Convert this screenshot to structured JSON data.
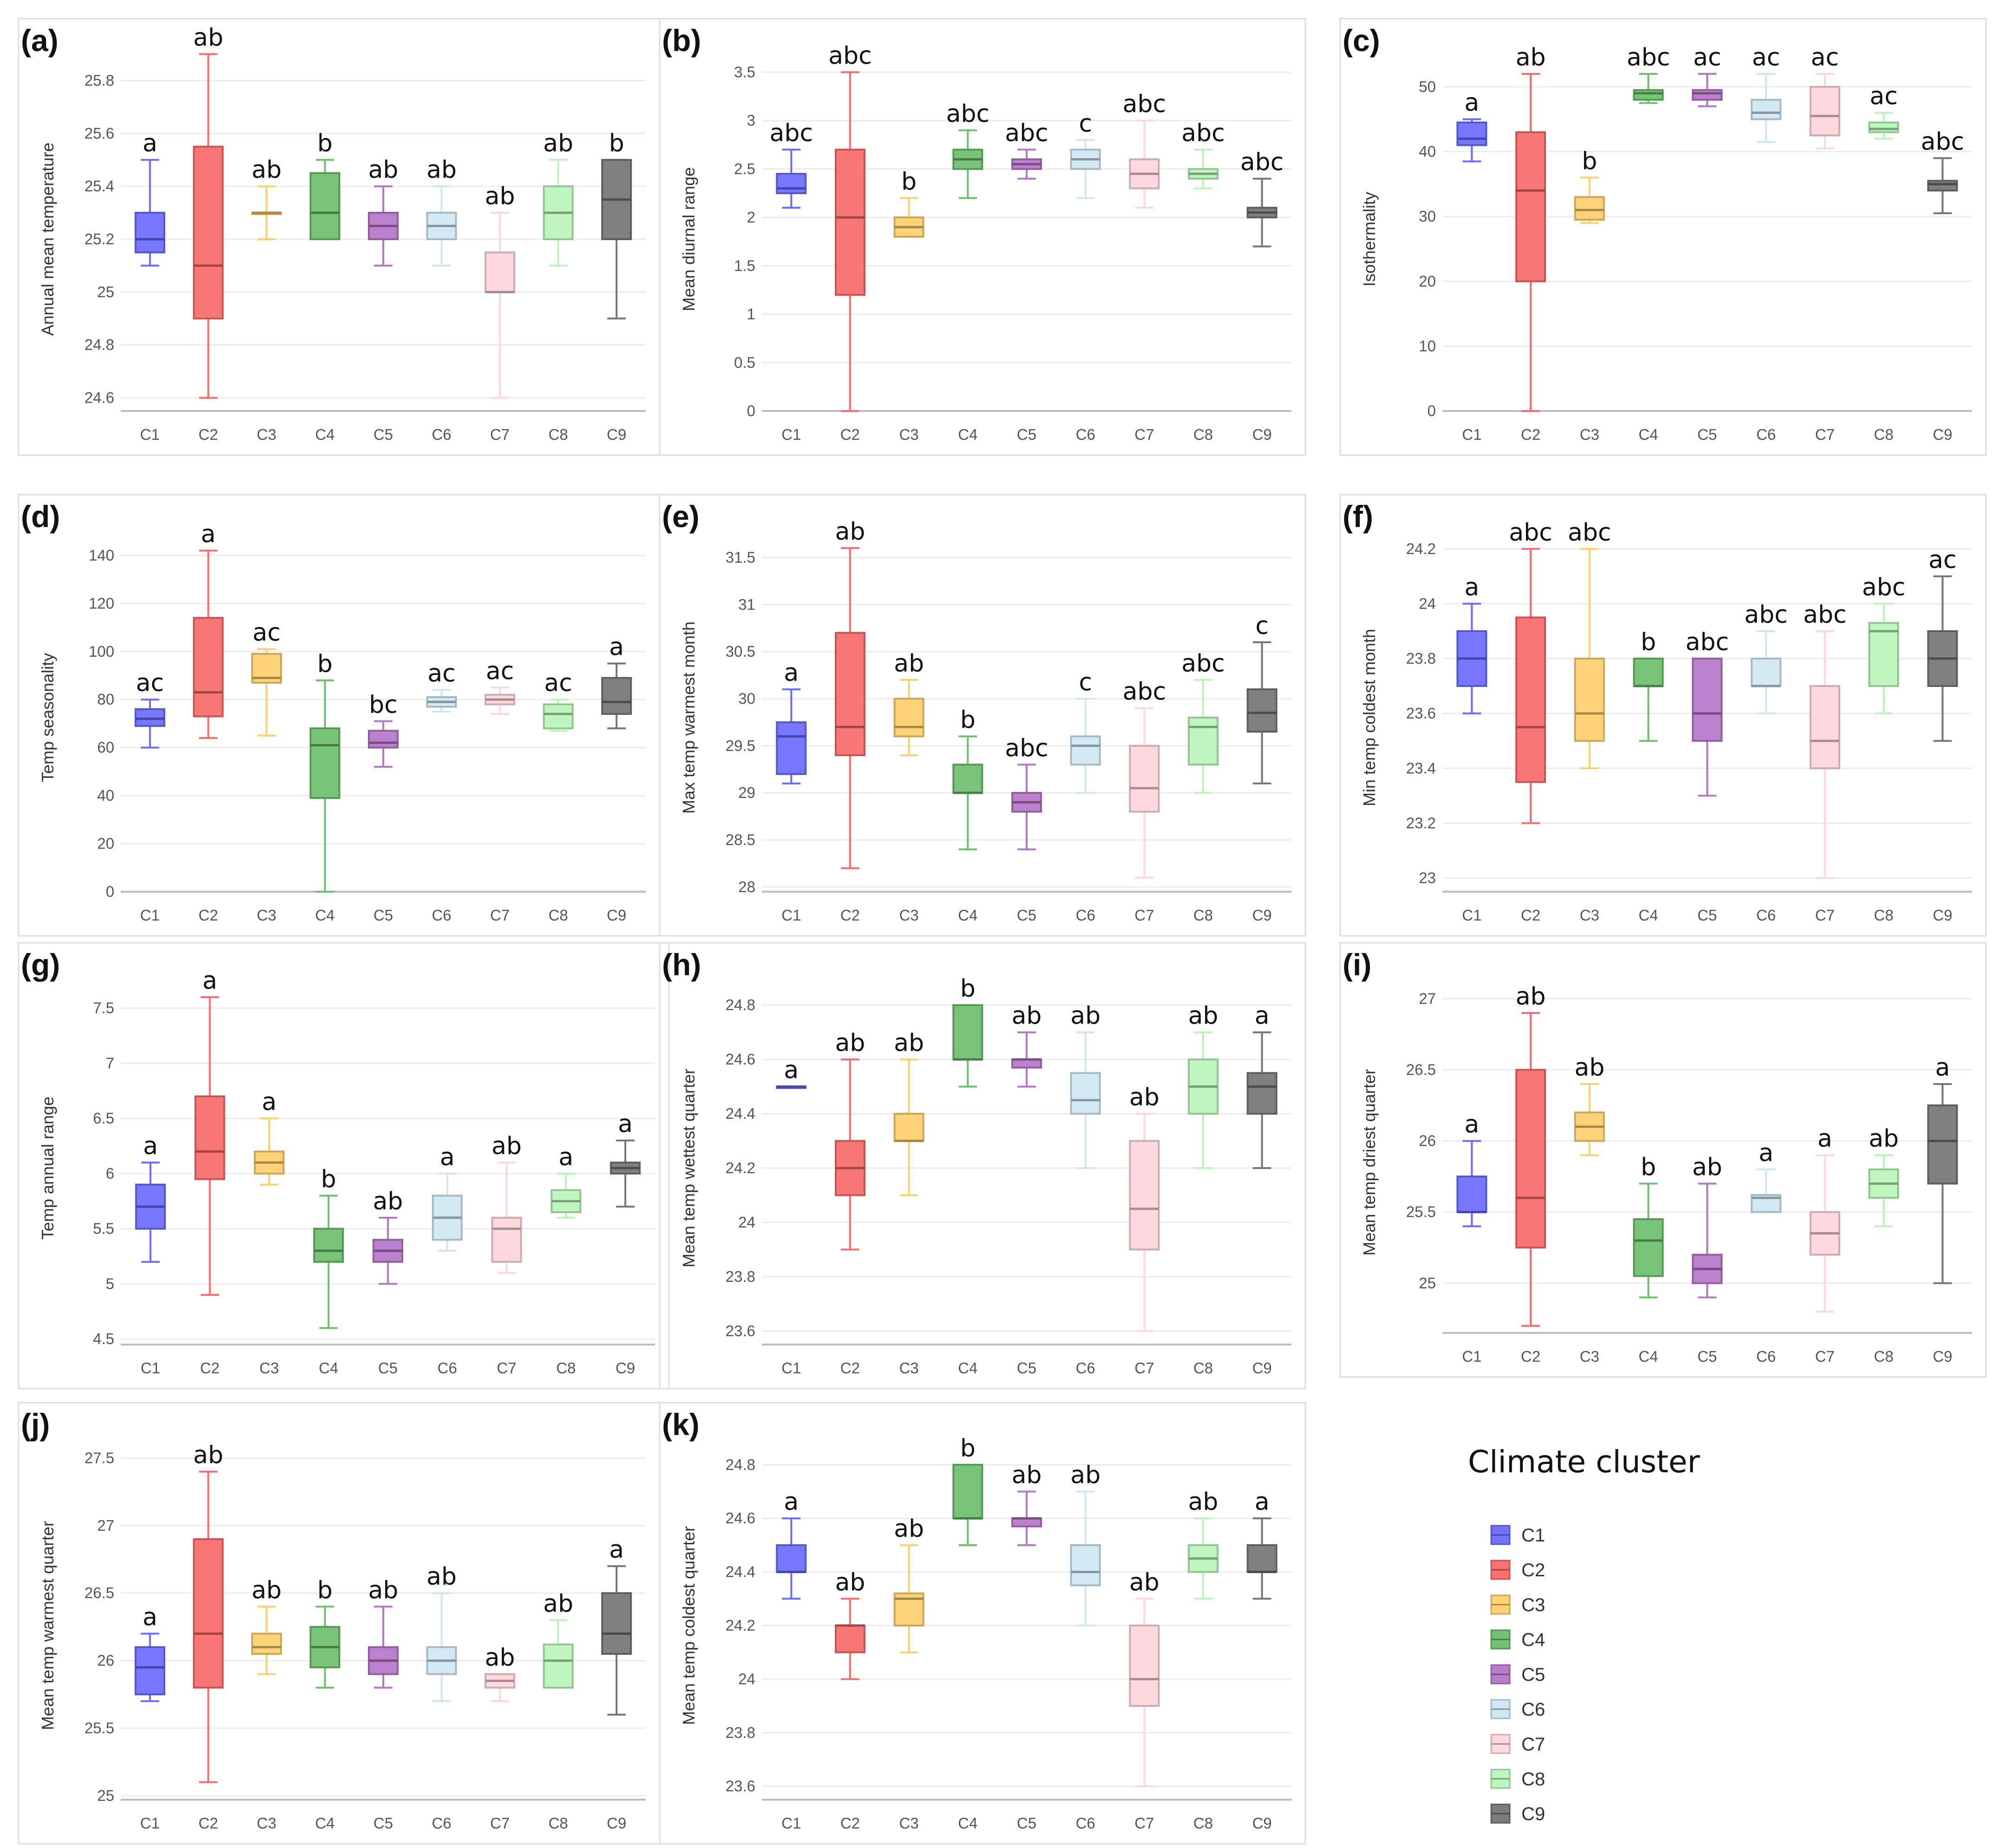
{
  "legend": {
    "title": "Climate cluster",
    "items": [
      {
        "label": "C1",
        "color": "#6b6bff"
      },
      {
        "label": "C2",
        "color": "#f96a6a"
      },
      {
        "label": "C3",
        "color": "#ffcf6e"
      },
      {
        "label": "C4",
        "color": "#6cbf6c"
      },
      {
        "label": "C5",
        "color": "#b676c8"
      },
      {
        "label": "C6",
        "color": "#cfe7f3"
      },
      {
        "label": "C7",
        "color": "#ffd6dd"
      },
      {
        "label": "C8",
        "color": "#b9f5b9"
      },
      {
        "label": "C9",
        "color": "#757575"
      }
    ]
  },
  "chart_data": [
    {
      "tag": "(a)",
      "type": "box",
      "ylabel": "Annual mean temperature",
      "categories": [
        "C1",
        "C2",
        "C3",
        "C4",
        "C5",
        "C6",
        "C7",
        "C8",
        "C9"
      ],
      "ylim": [
        24.55,
        25.85
      ],
      "yticks": [
        24.6,
        24.8,
        25,
        25.2,
        25.4,
        25.6,
        25.8
      ],
      "boxes": [
        [
          25.1,
          25.15,
          25.2,
          25.3,
          25.5
        ],
        [
          24.6,
          24.9,
          25.1,
          25.55,
          25.9
        ],
        [
          25.2,
          25.3,
          25.3,
          25.3,
          25.4
        ],
        [
          25.2,
          25.2,
          25.3,
          25.45,
          25.5
        ],
        [
          25.1,
          25.2,
          25.25,
          25.3,
          25.4
        ],
        [
          25.1,
          25.2,
          25.25,
          25.3,
          25.4
        ],
        [
          24.6,
          25.0,
          25.0,
          25.15,
          25.3
        ],
        [
          25.1,
          25.2,
          25.3,
          25.4,
          25.5
        ],
        [
          24.9,
          25.2,
          25.35,
          25.5,
          25.5
        ]
      ],
      "letters": [
        "a",
        "ab",
        "ab",
        "b",
        "ab",
        "ab",
        "ab",
        "ab",
        "b"
      ]
    },
    {
      "tag": "(b)",
      "type": "box",
      "ylabel": "Mean diurnal range",
      "categories": [
        "C1",
        "C2",
        "C3",
        "C4",
        "C5",
        "C6",
        "C7",
        "C8",
        "C9"
      ],
      "ylim": [
        0,
        3.55
      ],
      "yticks": [
        0,
        0.5,
        1,
        1.5,
        2,
        2.5,
        3,
        3.5
      ],
      "boxes": [
        [
          2.1,
          2.25,
          2.3,
          2.45,
          2.7
        ],
        [
          0,
          1.2,
          2.0,
          2.7,
          3.5
        ],
        [
          1.8,
          1.8,
          1.9,
          2.0,
          2.2
        ],
        [
          2.2,
          2.5,
          2.6,
          2.7,
          2.9
        ],
        [
          2.4,
          2.5,
          2.55,
          2.6,
          2.7
        ],
        [
          2.2,
          2.5,
          2.6,
          2.7,
          2.8
        ],
        [
          2.1,
          2.3,
          2.45,
          2.6,
          3.0
        ],
        [
          2.3,
          2.4,
          2.45,
          2.5,
          2.7
        ],
        [
          1.7,
          2.0,
          2.05,
          2.1,
          2.4
        ]
      ],
      "letters": [
        "abc",
        "abc",
        "b",
        "abc",
        "abc",
        "c",
        "abc",
        "abc",
        "abc"
      ]
    },
    {
      "tag": "(c)",
      "type": "box",
      "ylabel": "Isothermality",
      "categories": [
        "C1",
        "C2",
        "C3",
        "C4",
        "C5",
        "C6",
        "C7",
        "C8",
        "C9"
      ],
      "ylim": [
        0,
        53
      ],
      "yticks": [
        0,
        10,
        20,
        30,
        40,
        50
      ],
      "boxes": [
        [
          38.5,
          41,
          42,
          44.5,
          45
        ],
        [
          0,
          20,
          34,
          43,
          52
        ],
        [
          29,
          29.5,
          31,
          33,
          36
        ],
        [
          47.5,
          48,
          49,
          49.5,
          52
        ],
        [
          47,
          48,
          49,
          49.5,
          52
        ],
        [
          41.5,
          45,
          46,
          48,
          52
        ],
        [
          40.5,
          42.5,
          45.5,
          50,
          52
        ],
        [
          42,
          43,
          43.5,
          44.5,
          46
        ],
        [
          30.5,
          34,
          35,
          35.5,
          39
        ]
      ],
      "letters": [
        "a",
        "ab",
        "b",
        "abc",
        "ac",
        "ac",
        "ac",
        "ac",
        "abc"
      ]
    },
    {
      "tag": "(d)",
      "type": "box",
      "ylabel": "Temp seasonality",
      "categories": [
        "C1",
        "C2",
        "C3",
        "C4",
        "C5",
        "C6",
        "C7",
        "C8",
        "C9"
      ],
      "ylim": [
        0,
        145
      ],
      "yticks": [
        0,
        20,
        40,
        60,
        80,
        100,
        120,
        140
      ],
      "boxes": [
        [
          60,
          69,
          72,
          76,
          80
        ],
        [
          64,
          73,
          83,
          114,
          142
        ],
        [
          65,
          87,
          89,
          99,
          101
        ],
        [
          0,
          39,
          61,
          68,
          88
        ],
        [
          52,
          60,
          62,
          67,
          71
        ],
        [
          75,
          77,
          79,
          81,
          84
        ],
        [
          74,
          78,
          80,
          82,
          85
        ],
        [
          67,
          68,
          74,
          78,
          80
        ],
        [
          68,
          74,
          79,
          89,
          95
        ]
      ],
      "letters": [
        "ac",
        "a",
        "ac",
        "b",
        "bc",
        "ac",
        "ac",
        "ac",
        "a"
      ]
    },
    {
      "tag": "(e)",
      "type": "box",
      "ylabel": "Max temp warmest month",
      "categories": [
        "C1",
        "C2",
        "C3",
        "C4",
        "C5",
        "C6",
        "C7",
        "C8",
        "C9"
      ],
      "ylim": [
        27.95,
        31.65
      ],
      "yticks": [
        28,
        28.5,
        29,
        29.5,
        30,
        30.5,
        31,
        31.5
      ],
      "boxes": [
        [
          29.1,
          29.2,
          29.6,
          29.75,
          30.1
        ],
        [
          28.2,
          29.4,
          29.7,
          30.7,
          31.6
        ],
        [
          29.4,
          29.6,
          29.7,
          30.0,
          30.2
        ],
        [
          28.4,
          29.0,
          29.0,
          29.3,
          29.6
        ],
        [
          28.4,
          28.8,
          28.9,
          29.0,
          29.3
        ],
        [
          29.0,
          29.3,
          29.5,
          29.6,
          30.0
        ],
        [
          28.1,
          28.8,
          29.05,
          29.5,
          29.9
        ],
        [
          29.0,
          29.3,
          29.7,
          29.8,
          30.2
        ],
        [
          29.1,
          29.65,
          29.85,
          30.1,
          30.6
        ]
      ],
      "letters": [
        "a",
        "ab",
        "ab",
        "b",
        "abc",
        "c",
        "abc",
        "abc",
        "c"
      ]
    },
    {
      "tag": "(f)",
      "type": "box",
      "ylabel": "Min temp coldest month",
      "categories": [
        "C1",
        "C2",
        "C3",
        "C4",
        "C5",
        "C6",
        "C7",
        "C8",
        "C9"
      ],
      "ylim": [
        22.95,
        24.22
      ],
      "yticks": [
        23,
        23.2,
        23.4,
        23.6,
        23.8,
        24,
        24.2
      ],
      "boxes": [
        [
          23.6,
          23.7,
          23.8,
          23.9,
          24.0
        ],
        [
          23.2,
          23.35,
          23.55,
          23.95,
          24.2
        ],
        [
          23.4,
          23.5,
          23.6,
          23.8,
          24.2
        ],
        [
          23.5,
          23.7,
          23.7,
          23.8,
          23.8
        ],
        [
          23.3,
          23.5,
          23.6,
          23.8,
          23.8
        ],
        [
          23.6,
          23.7,
          23.7,
          23.8,
          23.9
        ],
        [
          23.0,
          23.4,
          23.5,
          23.7,
          23.9
        ],
        [
          23.6,
          23.7,
          23.9,
          23.93,
          24.0
        ],
        [
          23.5,
          23.7,
          23.8,
          23.9,
          24.1
        ]
      ],
      "letters": [
        "a",
        "abc",
        "abc",
        "b",
        "abc",
        "abc",
        "abc",
        "abc",
        "ac"
      ]
    },
    {
      "tag": "(g)",
      "type": "box",
      "ylabel": "Temp annual range",
      "categories": [
        "C1",
        "C2",
        "C3",
        "C4",
        "C5",
        "C6",
        "C7",
        "C8",
        "C9"
      ],
      "ylim": [
        4.45,
        7.65
      ],
      "yticks": [
        4.5,
        5,
        5.5,
        6,
        6.5,
        7,
        7.5
      ],
      "boxes": [
        [
          5.2,
          5.5,
          5.7,
          5.9,
          6.1
        ],
        [
          4.9,
          5.95,
          6.2,
          6.7,
          7.6
        ],
        [
          5.9,
          6.0,
          6.1,
          6.2,
          6.5
        ],
        [
          4.6,
          5.2,
          5.3,
          5.5,
          5.8
        ],
        [
          5.0,
          5.2,
          5.3,
          5.4,
          5.6
        ],
        [
          5.3,
          5.4,
          5.6,
          5.8,
          6.0
        ],
        [
          5.1,
          5.2,
          5.5,
          5.6,
          6.1
        ],
        [
          5.6,
          5.65,
          5.75,
          5.85,
          6.0
        ],
        [
          5.7,
          6.0,
          6.05,
          6.1,
          6.3
        ]
      ],
      "letters": [
        "a",
        "a",
        "a",
        "b",
        "ab",
        "a",
        "ab",
        "a",
        "a"
      ]
    },
    {
      "tag": "(h)",
      "type": "box",
      "ylabel": "Mean temp wettest quarter",
      "categories": [
        "C1",
        "C2",
        "C3",
        "C4",
        "C5",
        "C6",
        "C7",
        "C8",
        "C9"
      ],
      "ylim": [
        23.55,
        24.85
      ],
      "yticks": [
        23.6,
        23.8,
        24,
        24.2,
        24.4,
        24.6,
        24.8
      ],
      "boxes": [
        [
          24.5,
          24.5,
          24.5,
          24.5,
          24.5
        ],
        [
          23.9,
          24.1,
          24.2,
          24.3,
          24.6
        ],
        [
          24.1,
          24.3,
          24.3,
          24.4,
          24.6
        ],
        [
          24.5,
          24.6,
          24.6,
          24.8,
          24.8
        ],
        [
          24.5,
          24.57,
          24.6,
          24.6,
          24.7
        ],
        [
          24.2,
          24.4,
          24.45,
          24.55,
          24.7
        ],
        [
          23.6,
          23.9,
          24.05,
          24.3,
          24.4
        ],
        [
          24.2,
          24.4,
          24.5,
          24.6,
          24.7
        ],
        [
          24.2,
          24.4,
          24.5,
          24.55,
          24.7
        ]
      ],
      "letters": [
        "a",
        "ab",
        "ab",
        "b",
        "ab",
        "ab",
        "ab",
        "ab",
        "a"
      ]
    },
    {
      "tag": "(i)",
      "type": "box",
      "ylabel": "Mean temp driest quarter",
      "categories": [
        "C1",
        "C2",
        "C3",
        "C4",
        "C5",
        "C6",
        "C7",
        "C8",
        "C9"
      ],
      "ylim": [
        24.65,
        27.05
      ],
      "yticks": [
        25,
        25.5,
        26,
        26.5,
        27
      ],
      "boxes": [
        [
          25.4,
          25.5,
          25.5,
          25.75,
          26.0
        ],
        [
          24.7,
          25.25,
          25.6,
          26.5,
          26.9
        ],
        [
          25.9,
          26.0,
          26.1,
          26.2,
          26.4
        ],
        [
          24.9,
          25.05,
          25.3,
          25.45,
          25.7
        ],
        [
          24.9,
          25.0,
          25.1,
          25.2,
          25.7
        ],
        [
          25.5,
          25.5,
          25.6,
          25.62,
          25.8
        ],
        [
          24.8,
          25.2,
          25.35,
          25.5,
          25.9
        ],
        [
          25.4,
          25.6,
          25.7,
          25.8,
          25.9
        ],
        [
          25.0,
          25.7,
          26.0,
          26.25,
          26.4
        ]
      ],
      "letters": [
        "a",
        "ab",
        "ab",
        "b",
        "ab",
        "a",
        "a",
        "ab",
        "a"
      ]
    },
    {
      "tag": "(j)",
      "type": "box",
      "ylabel": "Mean temp warmest quarter",
      "categories": [
        "C1",
        "C2",
        "C3",
        "C4",
        "C5",
        "C6",
        "C7",
        "C8",
        "C9"
      ],
      "ylim": [
        24.97,
        27.55
      ],
      "yticks": [
        25,
        25.5,
        26,
        26.5,
        27,
        27.5
      ],
      "boxes": [
        [
          25.7,
          25.75,
          25.95,
          26.1,
          26.2
        ],
        [
          25.1,
          25.8,
          26.2,
          26.9,
          27.4
        ],
        [
          25.9,
          26.05,
          26.1,
          26.2,
          26.4
        ],
        [
          25.8,
          25.95,
          26.1,
          26.25,
          26.4
        ],
        [
          25.8,
          25.9,
          26.0,
          26.1,
          26.4
        ],
        [
          25.7,
          25.9,
          26.0,
          26.1,
          26.5
        ],
        [
          25.7,
          25.8,
          25.85,
          25.9,
          25.9
        ],
        [
          25.8,
          25.8,
          26.0,
          26.12,
          26.3
        ],
        [
          25.6,
          26.05,
          26.2,
          26.5,
          26.7
        ]
      ],
      "letters": [
        "a",
        "ab",
        "ab",
        "b",
        "ab",
        "ab",
        "ab",
        "ab",
        "a"
      ]
    },
    {
      "tag": "(k)",
      "type": "box",
      "ylabel": "Mean temp coldest quarter",
      "categories": [
        "C1",
        "C2",
        "C3",
        "C4",
        "C5",
        "C6",
        "C7",
        "C8",
        "C9"
      ],
      "ylim": [
        23.55,
        24.85
      ],
      "yticks": [
        23.6,
        23.8,
        24,
        24.2,
        24.4,
        24.6,
        24.8
      ],
      "boxes": [
        [
          24.3,
          24.4,
          24.4,
          24.5,
          24.6
        ],
        [
          24.0,
          24.1,
          24.2,
          24.2,
          24.3
        ],
        [
          24.1,
          24.2,
          24.3,
          24.32,
          24.5
        ],
        [
          24.5,
          24.6,
          24.6,
          24.8,
          24.8
        ],
        [
          24.5,
          24.57,
          24.6,
          24.6,
          24.7
        ],
        [
          24.2,
          24.35,
          24.4,
          24.5,
          24.7
        ],
        [
          23.6,
          23.9,
          24.0,
          24.2,
          24.3
        ],
        [
          24.3,
          24.4,
          24.45,
          24.5,
          24.6
        ],
        [
          24.3,
          24.4,
          24.4,
          24.5,
          24.6
        ]
      ],
      "letters": [
        "a",
        "ab",
        "ab",
        "b",
        "ab",
        "ab",
        "ab",
        "ab",
        "a"
      ]
    }
  ]
}
